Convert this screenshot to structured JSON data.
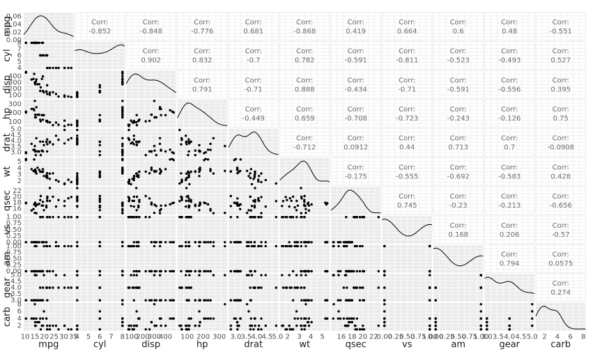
{
  "chart_data": {
    "type": "scatter-matrix",
    "variables": [
      "mpg",
      "cyl",
      "disp",
      "hp",
      "drat",
      "wt",
      "qsec",
      "vs",
      "am",
      "gear",
      "carb"
    ],
    "corr_header": "Corr:",
    "correlations": [
      [
        "-0.852",
        "-0.848",
        "-0.776",
        "0.681",
        "-0.868",
        "0.419",
        "0.664",
        "0.6",
        "0.48",
        "-0.551"
      ],
      [
        "0.902",
        "0.832",
        "-0.7",
        "0.782",
        "-0.591",
        "-0.811",
        "-0.523",
        "-0.493",
        "0.527"
      ],
      [
        "0.791",
        "-0.71",
        "0.888",
        "-0.434",
        "-0.71",
        "-0.591",
        "-0.556",
        "0.395"
      ],
      [
        "-0.449",
        "0.659",
        "-0.708",
        "-0.723",
        "-0.243",
        "-0.126",
        "0.75"
      ],
      [
        "-0.712",
        "0.0912",
        "0.44",
        "0.713",
        "0.7",
        "-0.0908"
      ],
      [
        "-0.175",
        "-0.555",
        "-0.692",
        "-0.583",
        "0.428"
      ],
      [
        "0.745",
        "-0.23",
        "-0.213",
        "-0.656"
      ],
      [
        "0.168",
        "0.206",
        "-0.57"
      ],
      [
        "0.794",
        "0.0575"
      ],
      [
        "0.274"
      ]
    ],
    "x_ticks": [
      [
        "10",
        "15",
        "20",
        "25",
        "30",
        "35"
      ],
      [
        "4",
        "5",
        "6",
        "7",
        "8"
      ],
      [
        "100",
        "200",
        "300",
        "400"
      ],
      [
        "100",
        "200",
        "300"
      ],
      [
        "3.0",
        "3.5",
        "4.0",
        "4.5",
        "5.0"
      ],
      [
        "2",
        "3",
        "4",
        "5"
      ],
      [
        "16",
        "18",
        "20",
        "22"
      ],
      [
        "0.00",
        "0.25",
        "0.50",
        "0.75",
        "1.00"
      ],
      [
        "0.00",
        "0.25",
        "0.50",
        "0.75",
        "1.00"
      ],
      [
        "3.0",
        "3.5",
        "4.0",
        "4.5",
        "5.0"
      ],
      [
        "2",
        "4",
        "6",
        "8"
      ]
    ],
    "x_tick_values": [
      [
        10,
        15,
        20,
        25,
        30,
        35
      ],
      [
        4,
        5,
        6,
        7,
        8
      ],
      [
        100,
        200,
        300,
        400
      ],
      [
        100,
        200,
        300
      ],
      [
        3.0,
        3.5,
        4.0,
        4.5,
        5.0
      ],
      [
        2,
        3,
        4,
        5
      ],
      [
        16,
        18,
        20,
        22
      ],
      [
        0,
        0.25,
        0.5,
        0.75,
        1
      ],
      [
        0,
        0.25,
        0.5,
        0.75,
        1
      ],
      [
        3.0,
        3.5,
        4.0,
        4.5,
        5.0
      ],
      [
        2,
        4,
        6,
        8
      ]
    ],
    "y_ticks": [
      [
        "0.00",
        "0.02",
        "0.04",
        "0.06"
      ],
      [
        "4",
        "5",
        "6",
        "7",
        "8"
      ],
      [
        "100",
        "200",
        "300",
        "400"
      ],
      [
        "100",
        "200",
        "300"
      ],
      [
        "3.0",
        "3.5",
        "4.0",
        "4.5",
        "5.0"
      ],
      [
        "2",
        "3",
        "4",
        "5"
      ],
      [
        "16",
        "18",
        "20",
        "22"
      ],
      [
        "0.00",
        "0.25",
        "0.50",
        "0.75",
        "1.00"
      ],
      [
        "0.00",
        "0.25",
        "0.50",
        "0.75",
        "1.00"
      ],
      [
        "3.0",
        "3.5",
        "4.0",
        "4.5",
        "5.0"
      ],
      [
        "2",
        "4",
        "6",
        "8"
      ]
    ],
    "y_tick_values": [
      [
        0,
        0.02,
        0.04,
        0.06
      ],
      [
        4,
        5,
        6,
        7,
        8
      ],
      [
        100,
        200,
        300,
        400
      ],
      [
        100,
        200,
        300
      ],
      [
        3.0,
        3.5,
        4.0,
        4.5,
        5.0
      ],
      [
        2,
        3,
        4,
        5
      ],
      [
        16,
        18,
        20,
        22
      ],
      [
        0,
        0.25,
        0.5,
        0.75,
        1
      ],
      [
        0,
        0.25,
        0.5,
        0.75,
        1
      ],
      [
        3.0,
        3.5,
        4.0,
        4.5,
        5.0
      ],
      [
        2,
        4,
        6,
        8
      ]
    ],
    "ranges": [
      [
        10.4,
        33.9
      ],
      [
        4,
        8
      ],
      [
        71.1,
        472
      ],
      [
        52,
        335
      ],
      [
        2.76,
        4.93
      ],
      [
        1.513,
        5.424
      ],
      [
        14.5,
        22.9
      ],
      [
        0,
        1
      ],
      [
        0,
        1
      ],
      [
        3,
        5
      ],
      [
        1,
        8
      ]
    ],
    "mpg_density_range": [
      0,
      0.07
    ],
    "observations": [
      [
        21.0,
        6,
        160.0,
        110,
        3.9,
        2.62,
        16.46,
        0,
        1,
        4,
        4
      ],
      [
        21.0,
        6,
        160.0,
        110,
        3.9,
        2.875,
        17.02,
        0,
        1,
        4,
        4
      ],
      [
        22.8,
        4,
        108.0,
        93,
        3.85,
        2.32,
        18.61,
        1,
        1,
        4,
        1
      ],
      [
        21.4,
        6,
        258.0,
        110,
        3.08,
        3.215,
        19.44,
        1,
        0,
        3,
        1
      ],
      [
        18.7,
        8,
        360.0,
        175,
        3.15,
        3.44,
        17.02,
        0,
        0,
        3,
        2
      ],
      [
        18.1,
        6,
        225.0,
        105,
        2.76,
        3.46,
        20.22,
        1,
        0,
        3,
        1
      ],
      [
        14.3,
        8,
        360.0,
        245,
        3.21,
        3.57,
        15.84,
        0,
        0,
        3,
        4
      ],
      [
        24.4,
        4,
        146.7,
        62,
        3.69,
        3.19,
        20.0,
        1,
        0,
        4,
        2
      ],
      [
        22.8,
        4,
        140.8,
        95,
        3.92,
        3.15,
        22.9,
        1,
        0,
        4,
        2
      ],
      [
        19.2,
        6,
        167.6,
        123,
        3.92,
        3.44,
        18.3,
        1,
        0,
        4,
        4
      ],
      [
        17.8,
        6,
        167.6,
        123,
        3.92,
        3.44,
        18.9,
        1,
        0,
        4,
        4
      ],
      [
        16.4,
        8,
        275.8,
        180,
        3.07,
        4.07,
        17.4,
        0,
        0,
        3,
        3
      ],
      [
        17.3,
        8,
        275.8,
        180,
        3.07,
        3.73,
        17.6,
        0,
        0,
        3,
        3
      ],
      [
        15.2,
        8,
        275.8,
        180,
        3.07,
        3.78,
        18.0,
        0,
        0,
        3,
        3
      ],
      [
        10.4,
        8,
        472.0,
        205,
        2.93,
        5.25,
        17.98,
        0,
        0,
        3,
        4
      ],
      [
        10.4,
        8,
        460.0,
        215,
        3.0,
        5.424,
        17.82,
        0,
        0,
        3,
        4
      ],
      [
        14.7,
        8,
        440.0,
        230,
        3.23,
        5.345,
        17.42,
        0,
        0,
        3,
        4
      ],
      [
        32.4,
        4,
        78.7,
        66,
        4.08,
        2.2,
        19.47,
        1,
        1,
        4,
        1
      ],
      [
        30.4,
        4,
        75.7,
        52,
        4.93,
        1.615,
        18.52,
        1,
        1,
        4,
        2
      ],
      [
        33.9,
        4,
        71.1,
        65,
        4.22,
        1.835,
        19.9,
        1,
        1,
        4,
        1
      ],
      [
        21.5,
        4,
        120.1,
        97,
        3.7,
        2.465,
        20.01,
        1,
        0,
        3,
        1
      ],
      [
        15.5,
        8,
        318.0,
        150,
        2.76,
        3.52,
        16.87,
        0,
        0,
        3,
        2
      ],
      [
        15.2,
        8,
        304.0,
        150,
        3.15,
        3.435,
        17.3,
        0,
        0,
        3,
        2
      ],
      [
        13.3,
        8,
        350.0,
        245,
        3.73,
        3.84,
        15.41,
        0,
        0,
        3,
        4
      ],
      [
        19.2,
        8,
        400.0,
        175,
        3.08,
        3.845,
        17.05,
        0,
        0,
        3,
        2
      ],
      [
        27.3,
        4,
        79.0,
        66,
        4.08,
        1.935,
        18.9,
        1,
        1,
        4,
        1
      ],
      [
        26.0,
        4,
        120.3,
        91,
        4.43,
        2.14,
        16.7,
        0,
        1,
        5,
        2
      ],
      [
        30.4,
        4,
        95.1,
        113,
        3.77,
        1.513,
        16.9,
        1,
        1,
        5,
        2
      ],
      [
        15.8,
        8,
        351.0,
        264,
        4.22,
        3.17,
        14.5,
        0,
        1,
        5,
        4
      ],
      [
        19.7,
        6,
        145.0,
        175,
        3.62,
        2.77,
        15.5,
        0,
        1,
        5,
        6
      ],
      [
        15.0,
        8,
        301.0,
        335,
        3.54,
        3.57,
        14.6,
        0,
        1,
        5,
        8
      ],
      [
        21.4,
        4,
        121.0,
        109,
        4.11,
        2.78,
        18.6,
        1,
        1,
        4,
        2
      ]
    ]
  }
}
